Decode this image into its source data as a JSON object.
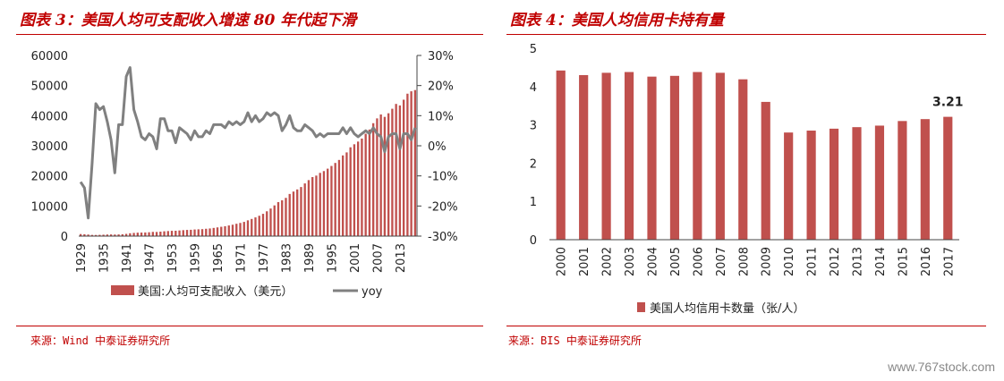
{
  "left": {
    "title": "图表 3：美国人均可支配收入增速 80 年代起下滑",
    "source": "来源：Wind 中泰证券研究所"
  },
  "right": {
    "title": "图表 4：美国人均信用卡持有量",
    "source": "来源：BIS 中泰证券研究所"
  },
  "watermark": "www.767stock.com",
  "chart_data": [
    {
      "type": "bar",
      "title": "",
      "x_tick_labels": [
        "1929",
        "1935",
        "1941",
        "1947",
        "1953",
        "1959",
        "1965",
        "1971",
        "1977",
        "1983",
        "1989",
        "1995",
        "2001",
        "2007",
        "2013"
      ],
      "x_start": 1929,
      "x_end": 2017,
      "ylim": [
        0,
        60000
      ],
      "y_ticks": [
        "0",
        "10000",
        "20000",
        "30000",
        "40000",
        "50000",
        "60000"
      ],
      "y2lim": [
        -30,
        30
      ],
      "y2_ticks": [
        "-30%",
        "-20%",
        "-10%",
        "0%",
        "10%",
        "20%",
        "30%"
      ],
      "colors": {
        "bar": "#c0504d",
        "line": "#808080"
      },
      "series": [
        {
          "name": "美国:人均可支配收入（美元）",
          "kind": "bar",
          "axis": "left",
          "x": [
            1929,
            1930,
            1931,
            1932,
            1933,
            1934,
            1935,
            1936,
            1937,
            1938,
            1939,
            1940,
            1941,
            1942,
            1943,
            1944,
            1945,
            1946,
            1947,
            1948,
            1949,
            1950,
            1951,
            1952,
            1953,
            1954,
            1955,
            1956,
            1957,
            1958,
            1959,
            1960,
            1961,
            1962,
            1963,
            1964,
            1965,
            1966,
            1967,
            1968,
            1969,
            1970,
            1971,
            1972,
            1973,
            1974,
            1975,
            1976,
            1977,
            1978,
            1979,
            1980,
            1981,
            1982,
            1983,
            1984,
            1985,
            1986,
            1987,
            1988,
            1989,
            1990,
            1991,
            1992,
            1993,
            1994,
            1995,
            1996,
            1997,
            1998,
            1999,
            2000,
            2001,
            2002,
            2003,
            2004,
            2005,
            2006,
            2007,
            2008,
            2009,
            2010,
            2011,
            2012,
            2013,
            2014,
            2015,
            2016,
            2017
          ],
          "values": [
            680,
            620,
            520,
            400,
            380,
            420,
            470,
            530,
            560,
            520,
            560,
            600,
            740,
            940,
            1060,
            1140,
            1180,
            1210,
            1280,
            1400,
            1380,
            1480,
            1600,
            1680,
            1760,
            1780,
            1880,
            1980,
            2060,
            2100,
            2200,
            2260,
            2320,
            2440,
            2540,
            2720,
            2900,
            3100,
            3280,
            3540,
            3780,
            4100,
            4380,
            4720,
            5240,
            5700,
            6220,
            6760,
            7400,
            8240,
            9160,
            10200,
            11300,
            11900,
            12700,
            14000,
            14800,
            15500,
            16300,
            17500,
            18600,
            19600,
            20100,
            21000,
            21600,
            22400,
            23300,
            24300,
            25300,
            26800,
            27800,
            29500,
            30500,
            31400,
            32400,
            34000,
            35400,
            37500,
            39100,
            40400,
            39600,
            40800,
            42300,
            43900,
            43400,
            45300,
            47300,
            48100,
            48500
          ]
        },
        {
          "name": "yoy",
          "kind": "line",
          "axis": "right",
          "x": [
            1929,
            1930,
            1931,
            1932,
            1933,
            1934,
            1935,
            1936,
            1937,
            1938,
            1939,
            1940,
            1941,
            1942,
            1943,
            1944,
            1945,
            1946,
            1947,
            1948,
            1949,
            1950,
            1951,
            1952,
            1953,
            1954,
            1955,
            1956,
            1957,
            1958,
            1959,
            1960,
            1961,
            1962,
            1963,
            1964,
            1965,
            1966,
            1967,
            1968,
            1969,
            1970,
            1971,
            1972,
            1973,
            1974,
            1975,
            1976,
            1977,
            1978,
            1979,
            1980,
            1981,
            1982,
            1983,
            1984,
            1985,
            1986,
            1987,
            1988,
            1989,
            1990,
            1991,
            1992,
            1993,
            1994,
            1995,
            1996,
            1997,
            1998,
            1999,
            2000,
            2001,
            2002,
            2003,
            2004,
            2005,
            2006,
            2007,
            2008,
            2009,
            2010,
            2011,
            2012,
            2013,
            2014,
            2015,
            2016,
            2017
          ],
          "values": [
            -12,
            -14,
            -24,
            -6,
            14,
            12,
            13,
            8,
            2,
            -9,
            7,
            7,
            23,
            26,
            12,
            8,
            3,
            2,
            4,
            3,
            -1,
            9,
            9,
            5,
            5,
            1,
            6,
            5,
            4,
            2,
            5,
            3,
            3,
            5,
            4,
            7,
            7,
            7,
            6,
            8,
            7,
            8,
            7,
            8,
            11,
            8,
            10,
            8,
            9,
            11,
            10,
            11,
            10,
            5,
            7,
            10,
            6,
            5,
            5,
            7,
            6,
            5,
            3,
            4,
            3,
            4,
            4,
            4,
            4,
            6,
            4,
            6,
            4,
            3,
            4,
            5,
            4,
            6,
            4,
            3,
            -2,
            3,
            4,
            4,
            -1,
            4,
            4,
            2,
            6
          ]
        }
      ]
    },
    {
      "type": "bar",
      "title": "",
      "categories": [
        "2000",
        "2001",
        "2002",
        "2003",
        "2004",
        "2005",
        "2006",
        "2007",
        "2008",
        "2009",
        "2010",
        "2011",
        "2012",
        "2013",
        "2014",
        "2015",
        "2016",
        "2017"
      ],
      "values": [
        4.42,
        4.3,
        4.36,
        4.38,
        4.26,
        4.28,
        4.38,
        4.36,
        4.19,
        3.6,
        2.8,
        2.85,
        2.9,
        2.94,
        2.98,
        3.1,
        3.15,
        3.21
      ],
      "ylim": [
        0,
        5
      ],
      "y_ticks": [
        "0",
        "1",
        "2",
        "3",
        "4",
        "5"
      ],
      "annotation": {
        "category": "2017",
        "label": "3.21"
      },
      "colors": {
        "bar": "#c0504d"
      },
      "series": [
        {
          "name": "美国人均信用卡数量（张/人）",
          "values": [
            4.42,
            4.3,
            4.36,
            4.38,
            4.26,
            4.28,
            4.38,
            4.36,
            4.19,
            3.6,
            2.8,
            2.85,
            2.9,
            2.94,
            2.98,
            3.1,
            3.15,
            3.21
          ]
        }
      ]
    }
  ]
}
